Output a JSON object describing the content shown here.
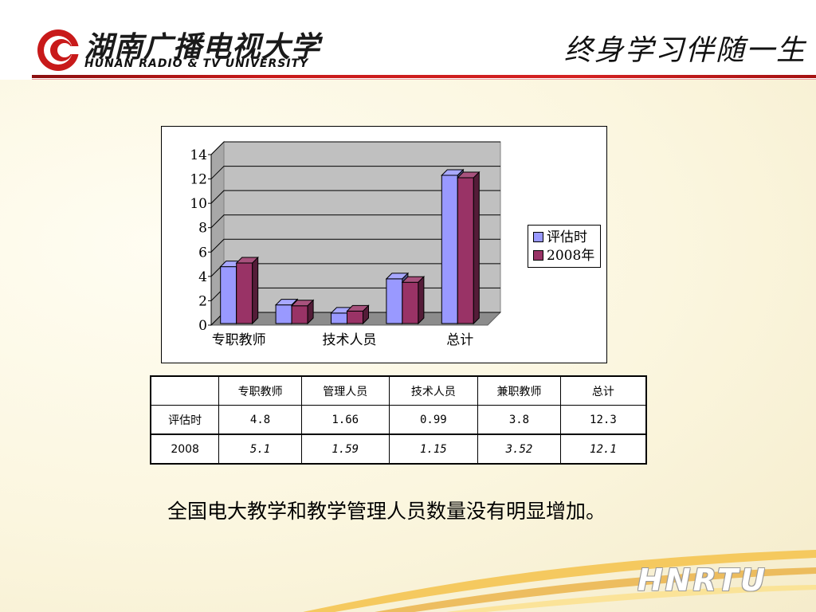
{
  "header": {
    "university_cn": "湖南广播电视大学",
    "university_en": "HUNAN RADIO & TV UNIVERSITY",
    "slogan": "终身学习伴随一生"
  },
  "colors": {
    "series1": "#9999ff",
    "series2": "#993366",
    "accent": "#c81a1a"
  },
  "chart_data": {
    "type": "bar",
    "style": "3d-clustered",
    "categories": [
      "专职教师",
      "管理人员",
      "技术人员",
      "兼职教师",
      "总计"
    ],
    "tick_labels_shown": [
      "专职教师",
      "",
      "技术人员",
      "",
      "总计"
    ],
    "series": [
      {
        "name": "评估时",
        "values": [
          4.8,
          1.66,
          0.99,
          3.8,
          12.3
        ]
      },
      {
        "name": "2008年",
        "values": [
          5.1,
          1.59,
          1.15,
          3.52,
          12.1
        ]
      }
    ],
    "ylim": [
      0,
      14
    ],
    "yticks": [
      0,
      2,
      4,
      6,
      8,
      10,
      12,
      14
    ],
    "grid": true,
    "legend": "right"
  },
  "table": {
    "headers": [
      "",
      "专职教师",
      "管理人员",
      "技术人员",
      "兼职教师",
      "总计"
    ],
    "rows": [
      {
        "label": "评估时",
        "cells": [
          "4.8",
          "1.66",
          "0.99",
          "3.8",
          "12.3"
        ]
      },
      {
        "label": "2008",
        "cells": [
          "5.1",
          "1.59",
          "1.15",
          "3.52",
          "12.1"
        ]
      }
    ]
  },
  "caption": "全国电大教学和教学管理人员数量没有明显增加。",
  "footer": {
    "brand": "HNRTU"
  }
}
